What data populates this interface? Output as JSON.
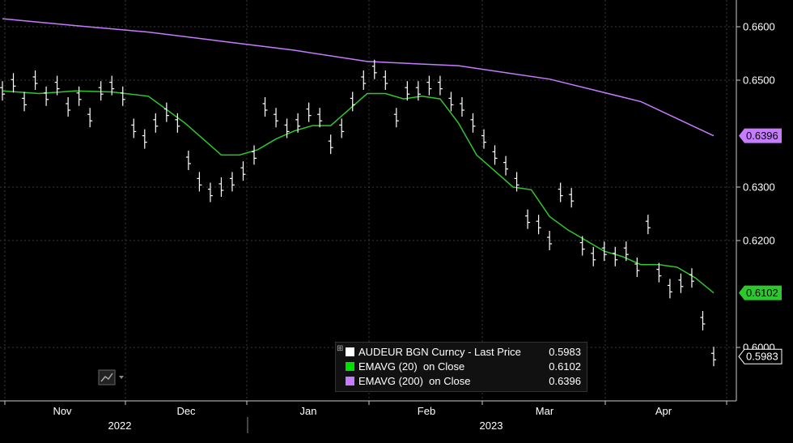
{
  "chart_data": {
    "type": "line",
    "ticker": "AUDEUR BGN Curncy",
    "y_ticks": [
      "0.6600",
      "0.6500",
      "0.6300",
      "0.6200",
      "0.6000"
    ],
    "ylim": [
      0.59,
      0.667
    ],
    "x_month_labels": [
      "Nov",
      "Dec",
      "Jan",
      "Feb",
      "Mar",
      "Apr"
    ],
    "x_year_labels": [
      "2022",
      "2023"
    ],
    "series": [
      {
        "name": "EMAVG (200)  on Close",
        "color": "#c77bff",
        "last_value": "0.6396",
        "x": [
          0,
          20,
          40,
          60,
          80,
          100,
          125,
          150,
          175,
          195
        ],
        "values": [
          0.6615,
          0.6602,
          0.659,
          0.6573,
          0.6556,
          0.6535,
          0.6527,
          0.6502,
          0.646,
          0.6396
        ]
      },
      {
        "name": "EMAVG (20)  on Close",
        "color": "#2ec82e",
        "last_value": "0.6102",
        "x": [
          0,
          10,
          20,
          30,
          40,
          50,
          60,
          65,
          70,
          75,
          80,
          85,
          90,
          95,
          100,
          105,
          110,
          115,
          120,
          125,
          130,
          135,
          140,
          145,
          150,
          155,
          160,
          165,
          170,
          175,
          180,
          185,
          190,
          195
        ],
        "values": [
          0.648,
          0.6475,
          0.648,
          0.6478,
          0.647,
          0.642,
          0.636,
          0.636,
          0.637,
          0.639,
          0.6405,
          0.6415,
          0.6415,
          0.6445,
          0.6475,
          0.6475,
          0.6465,
          0.647,
          0.6465,
          0.642,
          0.636,
          0.633,
          0.63,
          0.6295,
          0.6245,
          0.622,
          0.62,
          0.618,
          0.617,
          0.6155,
          0.6155,
          0.615,
          0.613,
          0.6102
        ]
      },
      {
        "name": "AUDEUR BGN Curncy - Last Price",
        "color": "#ffffff",
        "last_value": "0.5983",
        "x": [
          0,
          3,
          6,
          9,
          12,
          15,
          18,
          21,
          24,
          27,
          30,
          33,
          36,
          39,
          42,
          45,
          48,
          51,
          54,
          57,
          60,
          63,
          66,
          69,
          72,
          75,
          78,
          81,
          84,
          87,
          90,
          93,
          96,
          99,
          102,
          105,
          108,
          111,
          114,
          117,
          120,
          123,
          126,
          129,
          132,
          135,
          138,
          141,
          144,
          147,
          150,
          153,
          156,
          159,
          162,
          165,
          168,
          171,
          174,
          177,
          180,
          183,
          186,
          189,
          192,
          195
        ],
        "values": [
          0.648,
          0.6495,
          0.646,
          0.65,
          0.647,
          0.649,
          0.645,
          0.647,
          0.643,
          0.648,
          0.649,
          0.647,
          0.641,
          0.639,
          0.642,
          0.644,
          0.642,
          0.635,
          0.631,
          0.629,
          0.63,
          0.631,
          0.633,
          0.636,
          0.645,
          0.643,
          0.641,
          0.642,
          0.644,
          0.643,
          0.638,
          0.641,
          0.646,
          0.65,
          0.652,
          0.65,
          0.643,
          0.648,
          0.648,
          0.649,
          0.649,
          0.646,
          0.645,
          0.642,
          0.639,
          0.636,
          0.634,
          0.631,
          0.624,
          0.623,
          0.62,
          0.629,
          0.628,
          0.619,
          0.617,
          0.618,
          0.617,
          0.618,
          0.615,
          0.623,
          0.614,
          0.611,
          0.612,
          0.613,
          0.605,
          0.5983
        ]
      }
    ],
    "legend_placement": "bottom-center",
    "grid": true
  }
}
